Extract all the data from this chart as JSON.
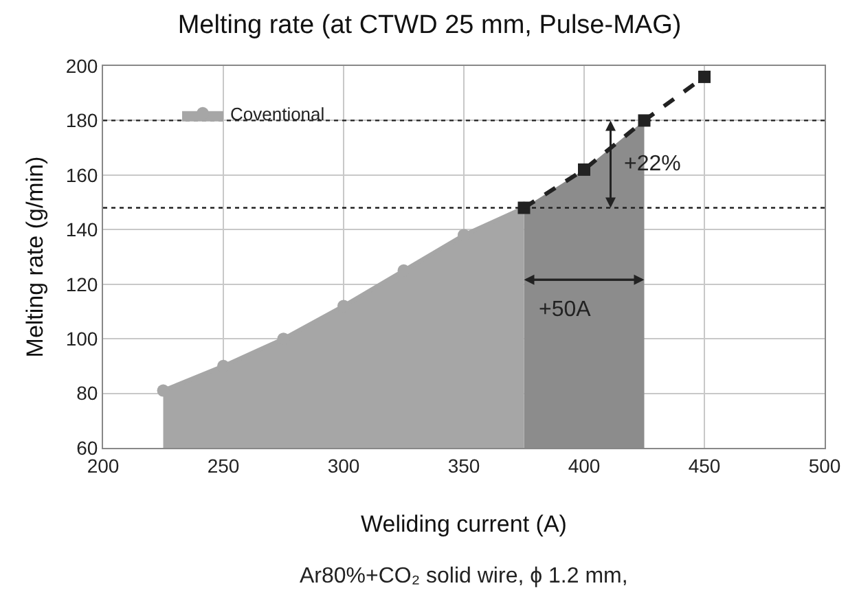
{
  "chart_data": {
    "type": "line",
    "title": "Melting rate (at CTWD 25 mm, Pulse-MAG)",
    "xlabel": "Weliding current (A)",
    "ylabel": "Melting rate (g/min)",
    "xlim": [
      200,
      500
    ],
    "xticks": [
      200,
      250,
      300,
      350,
      400,
      450,
      500
    ],
    "ylim": [
      60,
      200
    ],
    "yticks": [
      60,
      80,
      100,
      120,
      140,
      160,
      180,
      200
    ],
    "grid": true,
    "legend": "top left",
    "series": [
      {
        "type": "area",
        "color": "#8c8c8c",
        "x": [
          375,
          400,
          425
        ],
        "values": [
          148,
          162,
          180
        ],
        "marker": "none"
      },
      {
        "name": "Coventional",
        "type": "area",
        "color": "#a6a6a6",
        "x": [
          225,
          250,
          275,
          300,
          325,
          350,
          375
        ],
        "values": [
          81,
          90,
          100,
          112,
          125,
          138,
          148
        ],
        "marker": "circle",
        "line_style": "solid"
      },
      {
        "color": "#222222",
        "x": [
          375,
          400,
          425,
          450
        ],
        "values": [
          148,
          162,
          180,
          196
        ],
        "marker": "square",
        "line_style": "dashed"
      }
    ],
    "ref_lines": [
      {
        "axis": "y",
        "value": 180,
        "line_style": "dotted",
        "color": "#222222"
      },
      {
        "axis": "y",
        "value": 148,
        "line_style": "dotted",
        "color": "#222222"
      }
    ],
    "annotations": [
      {
        "text": "+22%",
        "x": 411,
        "y": 180
      },
      "+50A",
      "Ar80%+CO₂ solid wire, ϕ 1.2 mm,"
    ]
  }
}
